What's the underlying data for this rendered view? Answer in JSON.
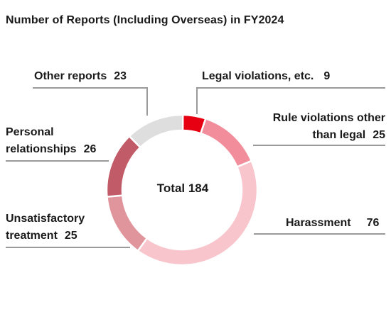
{
  "title": "Number of Reports (Including Overseas) in FY2024",
  "chart_data": {
    "type": "donut",
    "center_label": "Total 184",
    "slices": [
      {
        "name": "Legal violations, etc.",
        "value": 9,
        "color": "#e60012"
      },
      {
        "name": "Rule violations other than legal",
        "value": 25,
        "color": "#f28d9b"
      },
      {
        "name": "Harassment",
        "value": 76,
        "color": "#f9c5cd"
      },
      {
        "name": "Unsatisfactory treatment",
        "value": 25,
        "color": "#e0949c"
      },
      {
        "name": "Personal relationships",
        "value": 26,
        "color": "#c25b68"
      },
      {
        "name": "Other reports",
        "value": 23,
        "color": "#dedede"
      }
    ]
  },
  "labels": {
    "other": {
      "name": "Other reports",
      "value": "23"
    },
    "legal": {
      "name": "Legal violations, etc.",
      "value": "9"
    },
    "rule": {
      "name_line1": "Rule violations other",
      "name_line2": "than legal",
      "value": "25"
    },
    "personal": {
      "name_line1": "Personal",
      "name_line2": "relationships",
      "value": "26"
    },
    "harassment": {
      "name": "Harassment",
      "value": "76"
    },
    "unsat": {
      "name_line1": "Unsatisfactory",
      "name_line2": "treatment",
      "value": "25"
    }
  }
}
